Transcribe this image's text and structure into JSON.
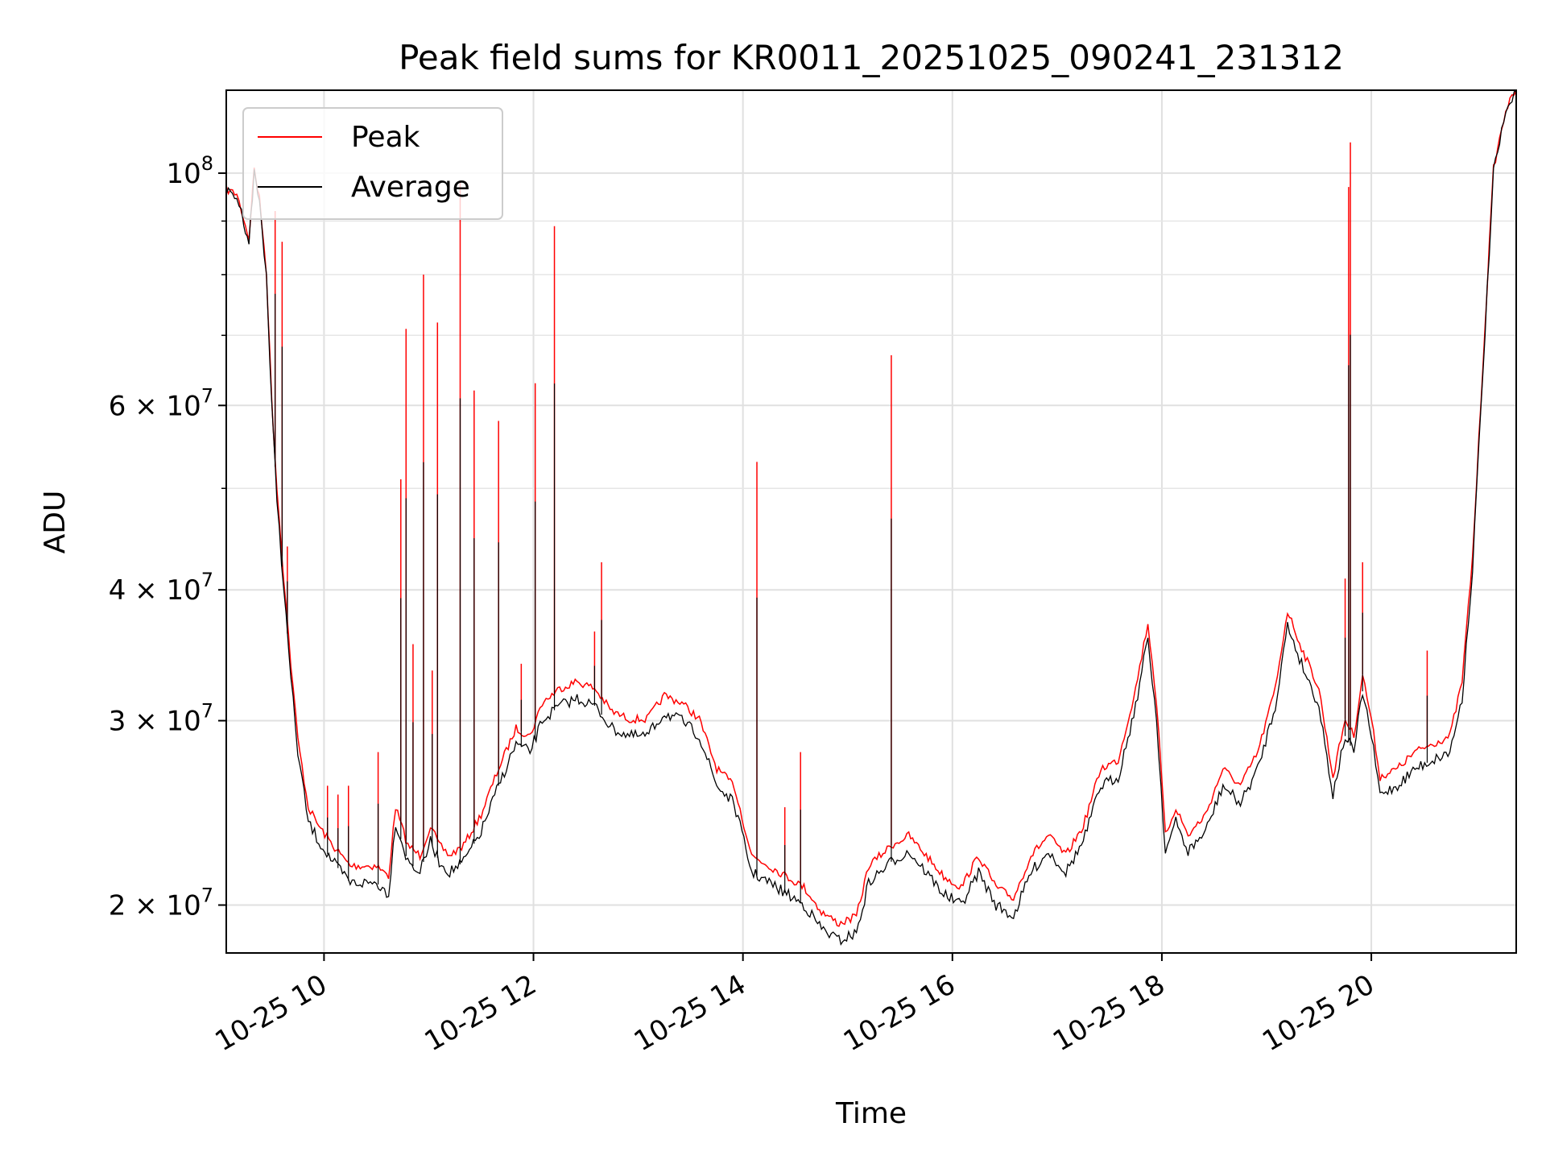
{
  "chart_data": {
    "type": "line",
    "title": "Peak field sums for KR0011_20251025_090241_231312",
    "xlabel": "Time",
    "ylabel": "ADU",
    "yscale": "log",
    "xlim": [
      "2025-10-25 09:04",
      "2025-10-25 21:23"
    ],
    "ylim": [
      18000000,
      120000000
    ],
    "grid": true,
    "legend_position": "top-left",
    "x_ticks": [
      {
        "t": "2025-10-25 10:00",
        "label": "10-25 10"
      },
      {
        "t": "2025-10-25 12:00",
        "label": "10-25 12"
      },
      {
        "t": "2025-10-25 14:00",
        "label": "10-25 14"
      },
      {
        "t": "2025-10-25 16:00",
        "label": "10-25 16"
      },
      {
        "t": "2025-10-25 18:00",
        "label": "10-25 18"
      },
      {
        "t": "2025-10-25 20:00",
        "label": "10-25 20"
      }
    ],
    "y_ticks": [
      {
        "value": 20000000,
        "base": "2 × 10",
        "exp": "7"
      },
      {
        "value": 30000000,
        "base": "3 × 10",
        "exp": "7"
      },
      {
        "value": 40000000,
        "base": "4 × 10",
        "exp": "7"
      },
      {
        "value": 60000000,
        "base": "6 × 10",
        "exp": "7"
      },
      {
        "value": 100000000,
        "base": "10",
        "exp": "8"
      }
    ],
    "y_minor_ticks": [
      50000000,
      70000000,
      80000000,
      90000000
    ],
    "series": [
      {
        "name": "Average",
        "color": "#000000",
        "points": [
          [
            "2025-10-25 09:04",
            96000000
          ],
          [
            "2025-10-25 09:10",
            95000000
          ],
          [
            "2025-10-25 09:14",
            90000000
          ],
          [
            "2025-10-25 09:17",
            86000000
          ],
          [
            "2025-10-25 09:20",
            100000000
          ],
          [
            "2025-10-25 09:23",
            94000000
          ],
          [
            "2025-10-25 09:27",
            80000000
          ],
          [
            "2025-10-25 09:30",
            60000000
          ],
          [
            "2025-10-25 09:33",
            49000000
          ],
          [
            "2025-10-25 09:37",
            40000000
          ],
          [
            "2025-10-25 09:41",
            33000000
          ],
          [
            "2025-10-25 09:45",
            28000000
          ],
          [
            "2025-10-25 09:51",
            24000000
          ],
          [
            "2025-10-25 09:57",
            23000000
          ],
          [
            "2025-10-25 10:05",
            22000000
          ],
          [
            "2025-10-25 10:15",
            21000000
          ],
          [
            "2025-10-25 10:30",
            21000000
          ],
          [
            "2025-10-25 10:37",
            20500000
          ],
          [
            "2025-10-25 10:41",
            24000000
          ],
          [
            "2025-10-25 10:48",
            22000000
          ],
          [
            "2025-10-25 10:55",
            21500000
          ],
          [
            "2025-10-25 11:01",
            23000000
          ],
          [
            "2025-10-25 11:06",
            22000000
          ],
          [
            "2025-10-25 11:12",
            21500000
          ],
          [
            "2025-10-25 11:20",
            22000000
          ],
          [
            "2025-10-25 11:30",
            23500000
          ],
          [
            "2025-10-25 11:40",
            26000000
          ],
          [
            "2025-10-25 11:50",
            28500000
          ],
          [
            "2025-10-25 11:58",
            28000000
          ],
          [
            "2025-10-25 12:05",
            30000000
          ],
          [
            "2025-10-25 12:15",
            31000000
          ],
          [
            "2025-10-25 12:25",
            31500000
          ],
          [
            "2025-10-25 12:35",
            31000000
          ],
          [
            "2025-10-25 12:45",
            29500000
          ],
          [
            "2025-10-25 12:55",
            29000000
          ],
          [
            "2025-10-25 13:05",
            29000000
          ],
          [
            "2025-10-25 13:15",
            30500000
          ],
          [
            "2025-10-25 13:25",
            30000000
          ],
          [
            "2025-10-25 13:35",
            29000000
          ],
          [
            "2025-10-25 13:45",
            26000000
          ],
          [
            "2025-10-25 13:55",
            25000000
          ],
          [
            "2025-10-25 14:05",
            21500000
          ],
          [
            "2025-10-25 14:15",
            21000000
          ],
          [
            "2025-10-25 14:25",
            20500000
          ],
          [
            "2025-10-25 14:35",
            20000000
          ],
          [
            "2025-10-25 14:45",
            19000000
          ],
          [
            "2025-10-25 14:55",
            18500000
          ],
          [
            "2025-10-25 15:05",
            18800000
          ],
          [
            "2025-10-25 15:12",
            21000000
          ],
          [
            "2025-10-25 15:25",
            22000000
          ],
          [
            "2025-10-25 15:35",
            22500000
          ],
          [
            "2025-10-25 15:45",
            21500000
          ],
          [
            "2025-10-25 15:55",
            20500000
          ],
          [
            "2025-10-25 16:05",
            20000000
          ],
          [
            "2025-10-25 16:15",
            21500000
          ],
          [
            "2025-10-25 16:25",
            20000000
          ],
          [
            "2025-10-25 16:35",
            19500000
          ],
          [
            "2025-10-25 16:45",
            21500000
          ],
          [
            "2025-10-25 16:55",
            22500000
          ],
          [
            "2025-10-25 17:05",
            21500000
          ],
          [
            "2025-10-25 17:15",
            23000000
          ],
          [
            "2025-10-25 17:25",
            26000000
          ],
          [
            "2025-10-25 17:35",
            26500000
          ],
          [
            "2025-10-25 17:45",
            31000000
          ],
          [
            "2025-10-25 17:52",
            36000000
          ],
          [
            "2025-10-25 17:57",
            30000000
          ],
          [
            "2025-10-25 18:02",
            22500000
          ],
          [
            "2025-10-25 18:08",
            24000000
          ],
          [
            "2025-10-25 18:15",
            22500000
          ],
          [
            "2025-10-25 18:25",
            23500000
          ],
          [
            "2025-10-25 18:35",
            26000000
          ],
          [
            "2025-10-25 18:45",
            25000000
          ],
          [
            "2025-10-25 18:55",
            27000000
          ],
          [
            "2025-10-25 19:05",
            31000000
          ],
          [
            "2025-10-25 19:12",
            37000000
          ],
          [
            "2025-10-25 19:20",
            34000000
          ],
          [
            "2025-10-25 19:30",
            31000000
          ],
          [
            "2025-10-25 19:38",
            25500000
          ],
          [
            "2025-10-25 19:45",
            29000000
          ],
          [
            "2025-10-25 19:50",
            28000000
          ],
          [
            "2025-10-25 19:55",
            32000000
          ],
          [
            "2025-10-25 20:00",
            29000000
          ],
          [
            "2025-10-25 20:05",
            25500000
          ],
          [
            "2025-10-25 20:15",
            26000000
          ],
          [
            "2025-10-25 20:25",
            27000000
          ],
          [
            "2025-10-25 20:35",
            27500000
          ],
          [
            "2025-10-25 20:45",
            28000000
          ],
          [
            "2025-10-25 20:52",
            31500000
          ],
          [
            "2025-10-25 20:58",
            42000000
          ],
          [
            "2025-10-25 21:04",
            65000000
          ],
          [
            "2025-10-25 21:10",
            100000000
          ],
          [
            "2025-10-25 21:17",
            114000000
          ],
          [
            "2025-10-25 21:23",
            120000000
          ]
        ]
      },
      {
        "name": "Peak",
        "color": "#ff0000",
        "points": [
          [
            "2025-10-25 09:04",
            96500000
          ],
          [
            "2025-10-25 09:10",
            95500000
          ],
          [
            "2025-10-25 09:14",
            90500000
          ],
          [
            "2025-10-25 09:17",
            86500000
          ],
          [
            "2025-10-25 09:20",
            101000000
          ],
          [
            "2025-10-25 09:23",
            94500000
          ],
          [
            "2025-10-25 09:27",
            80500000
          ],
          [
            "2025-10-25 09:30",
            61000000
          ],
          [
            "2025-10-25 09:33",
            50000000
          ],
          [
            "2025-10-25 09:37",
            41000000
          ],
          [
            "2025-10-25 09:41",
            34000000
          ],
          [
            "2025-10-25 09:45",
            28800000
          ],
          [
            "2025-10-25 09:51",
            24800000
          ],
          [
            "2025-10-25 09:57",
            23800000
          ],
          [
            "2025-10-25 10:05",
            22800000
          ],
          [
            "2025-10-25 10:15",
            21800000
          ],
          [
            "2025-10-25 10:30",
            21800000
          ],
          [
            "2025-10-25 10:37",
            21300000
          ],
          [
            "2025-10-25 10:41",
            24800000
          ],
          [
            "2025-10-25 10:48",
            22800000
          ],
          [
            "2025-10-25 10:55",
            22300000
          ],
          [
            "2025-10-25 11:01",
            23800000
          ],
          [
            "2025-10-25 11:06",
            22800000
          ],
          [
            "2025-10-25 11:12",
            22300000
          ],
          [
            "2025-10-25 11:20",
            22800000
          ],
          [
            "2025-10-25 11:30",
            24400000
          ],
          [
            "2025-10-25 11:40",
            27000000
          ],
          [
            "2025-10-25 11:50",
            29500000
          ],
          [
            "2025-10-25 11:58",
            29000000
          ],
          [
            "2025-10-25 12:05",
            31200000
          ],
          [
            "2025-10-25 12:15",
            32200000
          ],
          [
            "2025-10-25 12:25",
            32700000
          ],
          [
            "2025-10-25 12:35",
            32200000
          ],
          [
            "2025-10-25 12:45",
            30600000
          ],
          [
            "2025-10-25 12:55",
            30100000
          ],
          [
            "2025-10-25 13:05",
            30100000
          ],
          [
            "2025-10-25 13:15",
            31700000
          ],
          [
            "2025-10-25 13:25",
            31200000
          ],
          [
            "2025-10-25 13:35",
            30100000
          ],
          [
            "2025-10-25 13:45",
            27000000
          ],
          [
            "2025-10-25 13:55",
            26000000
          ],
          [
            "2025-10-25 14:05",
            22300000
          ],
          [
            "2025-10-25 14:15",
            21800000
          ],
          [
            "2025-10-25 14:25",
            21300000
          ],
          [
            "2025-10-25 14:35",
            20800000
          ],
          [
            "2025-10-25 14:45",
            19700000
          ],
          [
            "2025-10-25 14:55",
            19200000
          ],
          [
            "2025-10-25 15:05",
            19500000
          ],
          [
            "2025-10-25 15:12",
            21800000
          ],
          [
            "2025-10-25 15:25",
            22800000
          ],
          [
            "2025-10-25 15:35",
            23300000
          ],
          [
            "2025-10-25 15:45",
            22300000
          ],
          [
            "2025-10-25 15:55",
            21300000
          ],
          [
            "2025-10-25 16:05",
            20800000
          ],
          [
            "2025-10-25 16:15",
            22300000
          ],
          [
            "2025-10-25 16:25",
            20800000
          ],
          [
            "2025-10-25 16:35",
            20300000
          ],
          [
            "2025-10-25 16:45",
            22300000
          ],
          [
            "2025-10-25 16:55",
            23300000
          ],
          [
            "2025-10-25 17:05",
            22300000
          ],
          [
            "2025-10-25 17:15",
            23800000
          ],
          [
            "2025-10-25 17:25",
            27000000
          ],
          [
            "2025-10-25 17:35",
            27500000
          ],
          [
            "2025-10-25 17:45",
            32200000
          ],
          [
            "2025-10-25 17:52",
            37200000
          ],
          [
            "2025-10-25 17:57",
            31200000
          ],
          [
            "2025-10-25 18:02",
            23300000
          ],
          [
            "2025-10-25 18:08",
            24800000
          ],
          [
            "2025-10-25 18:15",
            23300000
          ],
          [
            "2025-10-25 18:25",
            24400000
          ],
          [
            "2025-10-25 18:35",
            27000000
          ],
          [
            "2025-10-25 18:45",
            26000000
          ],
          [
            "2025-10-25 18:55",
            28000000
          ],
          [
            "2025-10-25 19:05",
            32200000
          ],
          [
            "2025-10-25 19:12",
            38200000
          ],
          [
            "2025-10-25 19:20",
            35200000
          ],
          [
            "2025-10-25 19:30",
            32200000
          ],
          [
            "2025-10-25 19:38",
            26500000
          ],
          [
            "2025-10-25 19:45",
            30100000
          ],
          [
            "2025-10-25 19:50",
            29000000
          ],
          [
            "2025-10-25 19:55",
            33200000
          ],
          [
            "2025-10-25 20:00",
            30100000
          ],
          [
            "2025-10-25 20:05",
            26500000
          ],
          [
            "2025-10-25 20:15",
            27000000
          ],
          [
            "2025-10-25 20:25",
            28000000
          ],
          [
            "2025-10-25 20:35",
            28500000
          ],
          [
            "2025-10-25 20:45",
            29000000
          ],
          [
            "2025-10-25 20:52",
            32700000
          ],
          [
            "2025-10-25 20:58",
            43000000
          ],
          [
            "2025-10-25 21:04",
            66000000
          ],
          [
            "2025-10-25 21:10",
            101000000
          ],
          [
            "2025-10-25 21:17",
            115000000
          ],
          [
            "2025-10-25 21:23",
            120000000
          ]
        ],
        "spikes": [
          [
            "2025-10-25 09:32",
            92000000
          ],
          [
            "2025-10-25 09:36",
            86000000
          ],
          [
            "2025-10-25 09:39",
            44000000
          ],
          [
            "2025-10-25 10:02",
            26000000
          ],
          [
            "2025-10-25 10:08",
            25500000
          ],
          [
            "2025-10-25 10:14",
            26000000
          ],
          [
            "2025-10-25 10:31",
            28000000
          ],
          [
            "2025-10-25 10:44",
            51000000
          ],
          [
            "2025-10-25 10:47",
            71000000
          ],
          [
            "2025-10-25 10:51",
            35500000
          ],
          [
            "2025-10-25 10:57",
            80000000
          ],
          [
            "2025-10-25 11:02",
            33500000
          ],
          [
            "2025-10-25 11:05",
            72000000
          ],
          [
            "2025-10-25 11:18",
            98000000
          ],
          [
            "2025-10-25 11:26",
            62000000
          ],
          [
            "2025-10-25 11:40",
            58000000
          ],
          [
            "2025-10-25 11:53",
            34000000
          ],
          [
            "2025-10-25 12:01",
            63000000
          ],
          [
            "2025-10-25 12:12",
            89000000
          ],
          [
            "2025-10-25 12:35",
            36500000
          ],
          [
            "2025-10-25 12:39",
            42500000
          ],
          [
            "2025-10-25 14:08",
            53000000
          ],
          [
            "2025-10-25 14:24",
            24800000
          ],
          [
            "2025-10-25 14:33",
            28000000
          ],
          [
            "2025-10-25 15:25",
            67000000
          ],
          [
            "2025-10-25 19:45",
            41000000
          ],
          [
            "2025-10-25 19:47",
            97000000
          ],
          [
            "2025-10-25 19:48",
            107000000
          ],
          [
            "2025-10-25 19:55",
            42500000
          ],
          [
            "2025-10-25 20:32",
            35000000
          ]
        ]
      }
    ]
  }
}
